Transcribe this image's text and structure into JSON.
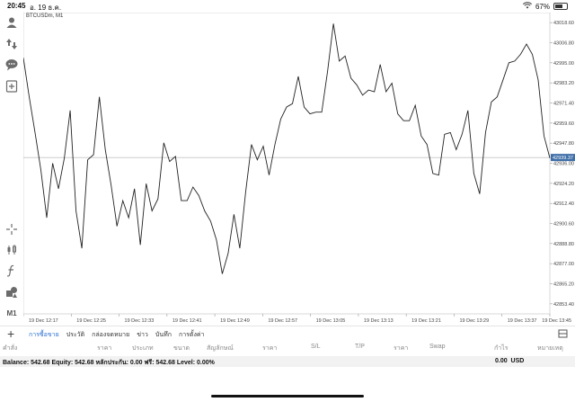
{
  "status": {
    "time": "20:45",
    "date": "อ. 19 ธ.ค.",
    "battery": "67%"
  },
  "chart": {
    "symbol_label": "BTCUSDm, M1",
    "current_price": "42939.37",
    "price_levels": [
      "43018.60",
      "43006.80",
      "42995.00",
      "42983.20",
      "42971.40",
      "42959.60",
      "42947.80",
      "42936.00",
      "42924.20",
      "42912.40",
      "42900.60",
      "42888.80",
      "42877.00",
      "42865.20",
      "42853.40"
    ],
    "time_labels": [
      "19 Dec 12:17",
      "19 Dec 12:25",
      "19 Dec 12:33",
      "19 Dec 12:41",
      "19 Dec 12:49",
      "19 Dec 12:57",
      "19 Dec 13:05",
      "19 Dec 13:13",
      "19 Dec 13:21",
      "19 Dec 13:29",
      "19 Dec 13:37",
      "19 Dec 13:45"
    ]
  },
  "chart_data": {
    "type": "line",
    "symbol": "BTCUSDm",
    "timeframe": "M1",
    "ylim": [
      42847.5,
      43024.5
    ],
    "y": [
      42998,
      42975,
      42954,
      42932,
      42904,
      42936,
      42921,
      42939,
      42967,
      42908,
      42886,
      42938,
      42941,
      42975,
      42944,
      42923,
      42899,
      42914,
      42904,
      42921,
      42888,
      42924,
      42908,
      42915,
      42948,
      42937,
      42940,
      42914,
      42914,
      42922,
      42917,
      42908,
      42902,
      42891,
      42871,
      42883,
      42906,
      42886,
      42919,
      42947,
      42938,
      42946,
      42929,
      42947,
      42962,
      42969,
      42971,
      42987,
      42969,
      42965,
      42966,
      42966,
      42990,
      43018,
      42996,
      42999,
      42986,
      42982,
      42976,
      42979,
      42978,
      42994,
      42978,
      42983,
      42965,
      42961,
      42961,
      42970,
      42952,
      42947,
      42930,
      42929,
      42953,
      42954,
      42944,
      42953,
      42967,
      42930,
      42918,
      42954,
      42972,
      42975,
      42985,
      42995,
      42996,
      43000,
      43006,
      43000,
      42985,
      42952,
      42939
    ]
  },
  "sidebar": [
    {
      "icon": "account-icon"
    },
    {
      "icon": "trade-arrows-icon"
    },
    {
      "icon": "chat-icon"
    },
    {
      "icon": "new-order-icon"
    },
    {
      "icon": "crosshair-icon"
    },
    {
      "icon": "chart-type-icon"
    },
    {
      "icon": "indicators-icon"
    },
    {
      "icon": "objects-icon"
    },
    {
      "label": "M1"
    }
  ],
  "tabs": {
    "items": [
      "การซื้อขาย",
      "ประวัติ",
      "กล่องจดหมาย",
      "ข่าว",
      "บันทึก",
      "การตั้งค่า"
    ],
    "active_index": 0
  },
  "columns": [
    "คำสั่ง",
    "ราคา",
    "ประเภท",
    "ขนาด",
    "สัญลักษณ์",
    "ราคา",
    "S/L",
    "T/P",
    "ราคา",
    "Swap",
    "กำไร",
    "หมายเหตุ"
  ],
  "balance": {
    "text": "Balance: 542.68 Equity: 542.68 หลักประกัน: 0.00 ฟรี: 542.68 Level: 0.00%",
    "profit": "0.00",
    "currency": "USD"
  }
}
